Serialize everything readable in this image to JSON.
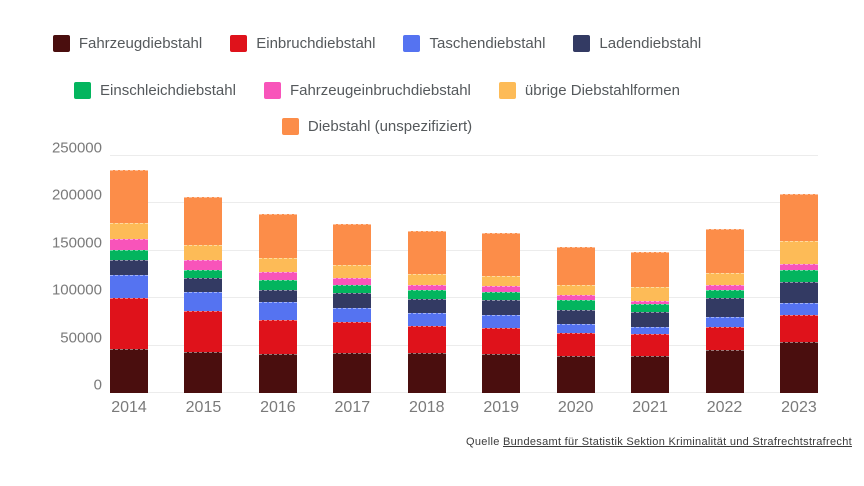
{
  "chart_data": {
    "type": "bar",
    "stacked": true,
    "categories": [
      "2014",
      "2015",
      "2016",
      "2017",
      "2018",
      "2019",
      "2020",
      "2021",
      "2022",
      "2023"
    ],
    "series": [
      {
        "name": "Fahrzeugdiebstahl",
        "color": "#4a0e0e",
        "values": [
          46000,
          43500,
          41000,
          42000,
          42500,
          41500,
          39500,
          39000,
          45500,
          53500
        ]
      },
      {
        "name": "Einbruchdiebstahl",
        "color": "#df121b",
        "values": [
          54500,
          43000,
          36500,
          32500,
          28000,
          27000,
          24000,
          23500,
          24500,
          29000
        ]
      },
      {
        "name": "Taschendiebstahl",
        "color": "#5573f1",
        "values": [
          24500,
          20500,
          18500,
          15000,
          13500,
          14000,
          9000,
          7500,
          10500,
          12000
        ]
      },
      {
        "name": "Ladendiebstahl",
        "color": "#333a63",
        "values": [
          15000,
          14000,
          12500,
          16000,
          15500,
          16000,
          15500,
          15500,
          19500,
          23000
        ]
      },
      {
        "name": "Einschleichdiebstahl",
        "color": "#03b55e",
        "values": [
          10500,
          9000,
          10500,
          9000,
          9000,
          8000,
          10000,
          8500,
          9000,
          12000
        ]
      },
      {
        "name": "Fahrzeugeinbruchdiebstahl",
        "color": "#f854ba",
        "values": [
          12500,
          10500,
          9000,
          7000,
          5500,
          6000,
          5000,
          3500,
          5500,
          6500
        ]
      },
      {
        "name": "übrige Diebstahlformen",
        "color": "#fdbb57",
        "values": [
          16500,
          16000,
          15000,
          13500,
          12000,
          10500,
          11500,
          14500,
          12500,
          24000
        ]
      },
      {
        "name": "Diebstahl (unspezifiziert)",
        "color": "#fc8d49",
        "values": [
          55500,
          50000,
          45500,
          43500,
          44500,
          46000,
          39500,
          36500,
          46500,
          49500
        ]
      }
    ],
    "title": "",
    "xlabel": "",
    "ylabel": "",
    "ylim": [
      0,
      250000
    ],
    "yticks": [
      0,
      50000,
      100000,
      150000,
      200000,
      250000
    ],
    "ytick_labels": [
      "0",
      "50000",
      "100000",
      "150000",
      "200000",
      "250000"
    ],
    "grid": true,
    "legend_position": "top",
    "legend_rows": [
      [
        0,
        1,
        2,
        3
      ],
      [
        4,
        5,
        6
      ],
      [
        7
      ]
    ]
  },
  "source": {
    "prefix": "Quelle ",
    "link_text": "Bundesamt für Statistik Sektion Kriminalität und Strafrechtstrafrecht"
  }
}
